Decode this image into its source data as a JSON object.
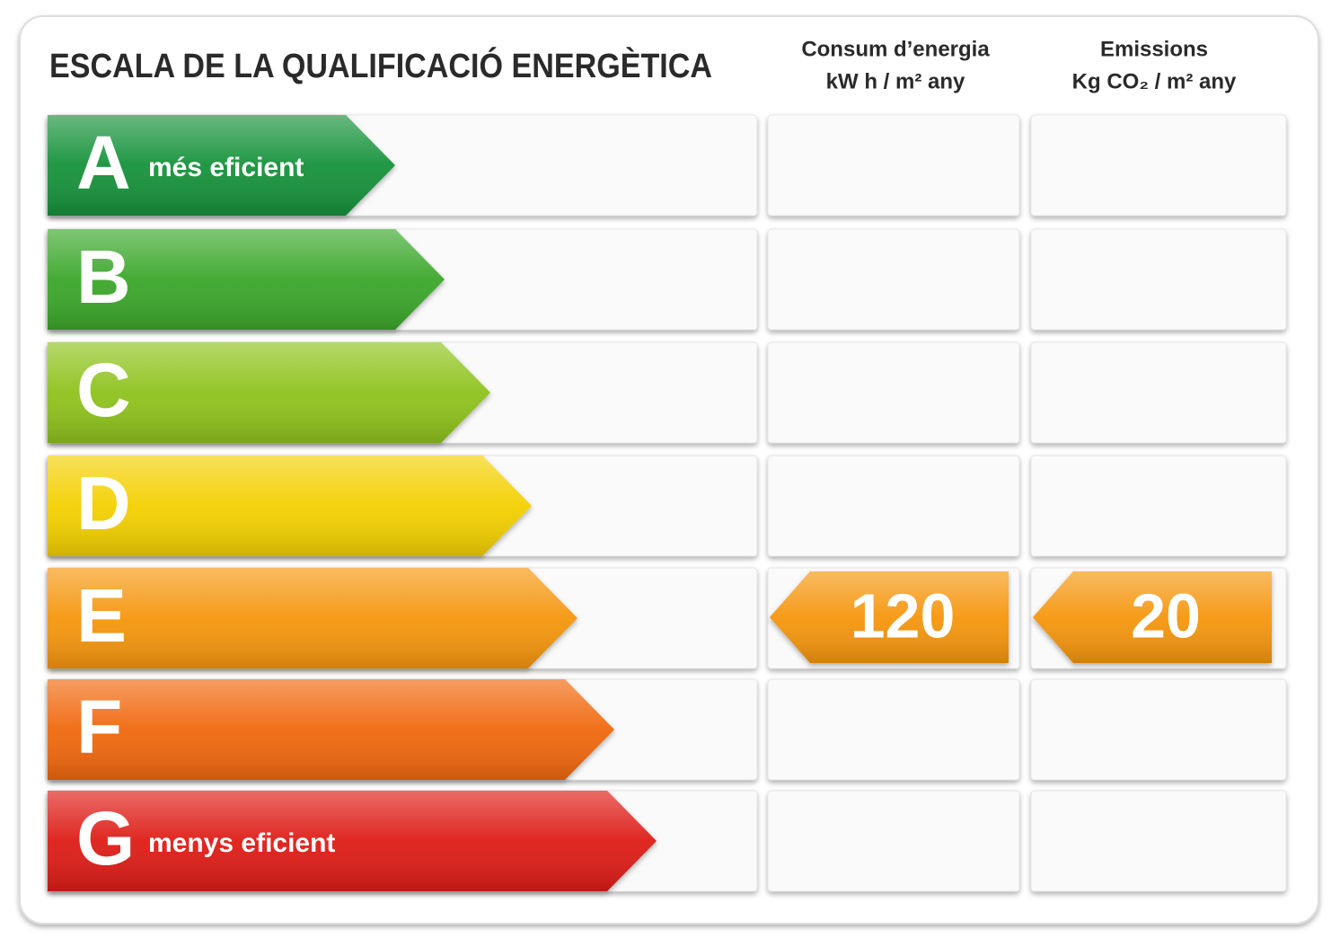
{
  "header": {
    "title": "ESCALA DE LA QUALIFICACIÓ ENERGÈTICA",
    "columns": [
      {
        "line1": "Consum d’energia",
        "line2": "kW h / m² any"
      },
      {
        "line1": "Emissions",
        "line2": "Kg CO₂ / m² any"
      }
    ]
  },
  "rows": [
    {
      "letter": "A",
      "note": "més eficient",
      "color": "#18923a"
    },
    {
      "letter": "B",
      "color": "#3aa72c"
    },
    {
      "letter": "C",
      "color": "#8ec21c"
    },
    {
      "letter": "D",
      "color": "#f3d000"
    },
    {
      "letter": "E",
      "color": "#f5960e",
      "consumption": 120,
      "emissions": 20
    },
    {
      "letter": "F",
      "color": "#f0680c"
    },
    {
      "letter": "G",
      "note": "menys eficient",
      "color": "#de1a14"
    }
  ]
}
